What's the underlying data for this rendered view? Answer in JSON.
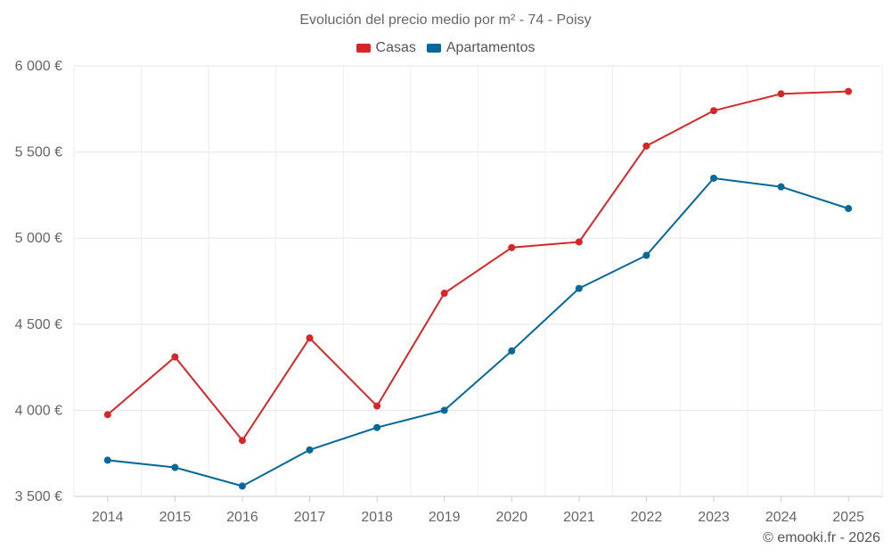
{
  "chart_data": {
    "type": "line",
    "title": "Evolución del precio medio por m² - 74 - Poisy",
    "categories": [
      "2014",
      "2015",
      "2016",
      "2017",
      "2018",
      "2019",
      "2020",
      "2021",
      "2022",
      "2023",
      "2024",
      "2025"
    ],
    "ylim": [
      3500,
      6000
    ],
    "yticks": [
      3500,
      4000,
      4500,
      5000,
      5500,
      6000
    ],
    "ytick_labels": [
      "3 500 €",
      "4 000 €",
      "4 500 €",
      "5 000 €",
      "5 500 €",
      "6 000 €"
    ],
    "xlabel": "",
    "ylabel": "",
    "grid": true,
    "legend_position": "top-center",
    "series": [
      {
        "name": "Casas",
        "color": "#d62728",
        "values": [
          3975,
          4310,
          3825,
          4420,
          4025,
          4680,
          4945,
          4978,
          5535,
          5740,
          5838,
          5852
        ]
      },
      {
        "name": "Apartamentos",
        "color": "#04689b",
        "values": [
          3710,
          3668,
          3560,
          3770,
          3900,
          4000,
          4345,
          4708,
          4900,
          5348,
          5298,
          5172
        ]
      }
    ]
  },
  "credit": "© emooki.fr - 2026"
}
